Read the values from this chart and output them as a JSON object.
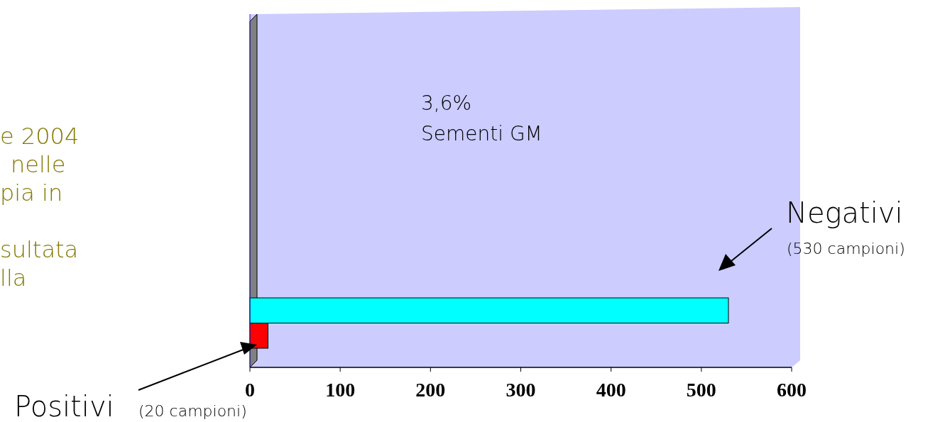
{
  "chart_data": {
    "type": "bar",
    "orientation": "horizontal",
    "categories": [
      null,
      null
    ],
    "values": [
      530,
      20
    ],
    "colors": [
      "#00ffff",
      "#ff0000"
    ],
    "xlim": [
      0,
      600
    ],
    "xticks": [
      0,
      100,
      200,
      300,
      400,
      500,
      600
    ],
    "annotations": [
      "3,6%",
      "Sementi GM",
      "Negativi",
      "(530 campioni)",
      "Positivi",
      "(20 campioni)",
      "e 2004",
      "nelle",
      "pia in",
      "sultata",
      "lla"
    ]
  }
}
